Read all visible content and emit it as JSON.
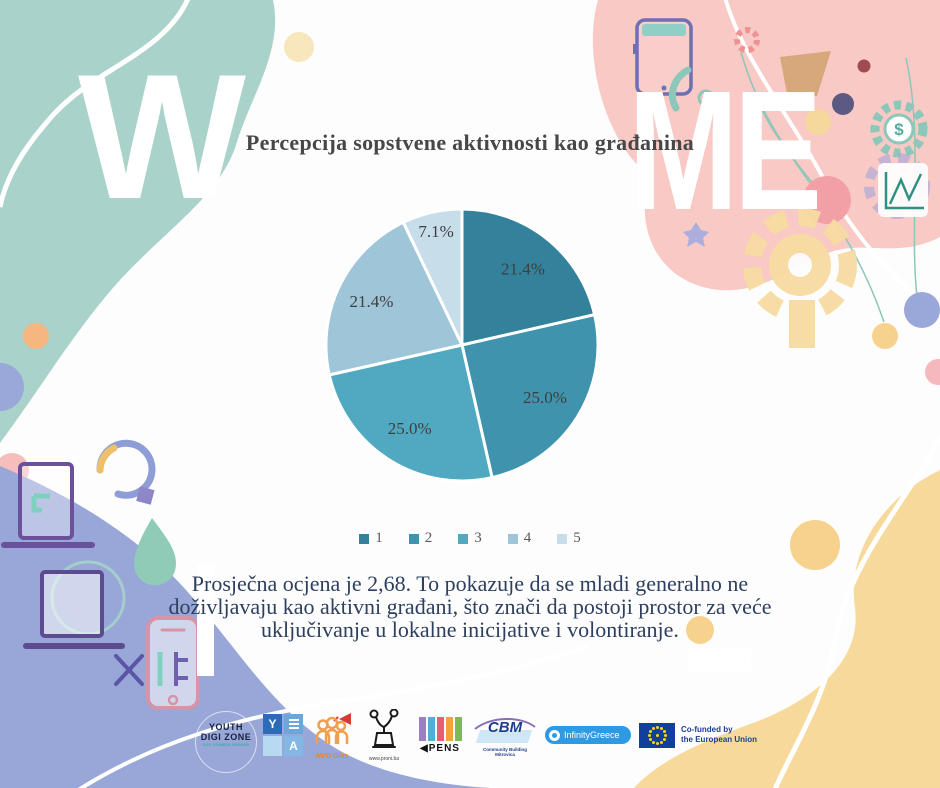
{
  "watermark": {
    "left": "W",
    "right": "ME"
  },
  "chart_data": {
    "type": "pie",
    "title": "Percepcija sopstvene aktivnosti kao građanina",
    "categories": [
      "1",
      "2",
      "3",
      "4",
      "5"
    ],
    "values": [
      21.4,
      25.0,
      25.0,
      21.4,
      7.1
    ],
    "labels": [
      "21.4%",
      "25.0%",
      "25.0%",
      "21.4%",
      "7.1%"
    ],
    "colors": [
      "#34819b",
      "#3f93ad",
      "#50a9c1",
      "#9ec5d8",
      "#c7dde9"
    ],
    "start_angle_deg": 0,
    "direction": "clockwise",
    "legend_position": "bottom",
    "slice_label_color": "#3f3f3f"
  },
  "annotation": {
    "text": "Prosječna ocjena je 2,68. To pokazuje da se mladi generalno ne doživljavaju kao aktivni građani, što znači da postoji prostor za veće uključivanje u lokalne inicijative i volontiranje."
  },
  "logos": {
    "youth_digi_zone": {
      "line1": "YOUTH",
      "line2": "DIGI ZONE",
      "line3": "OUR COMMON GROUND"
    },
    "ya": {
      "top_left": "Y",
      "bottom_right": "A"
    },
    "nvo_glas": {
      "name": "NVO Glas"
    },
    "proni": {
      "url": "www.proni.ba"
    },
    "pens": {
      "name": "PENS"
    },
    "cbm": {
      "name": "CBM",
      "subtitle": "Community Building Mitrovica"
    },
    "infinity_greece": {
      "name": "InfinityGreece"
    },
    "eu": {
      "line1": "Co-funded by",
      "line2": "the European Union"
    }
  },
  "palette": {
    "teal_blob": "#a9d3ca",
    "pink_blob": "#f8c9c5",
    "periwinkle_blob": "#98a7d7",
    "yellow_blob": "#f7d99b",
    "annotation_text": "#2d3f5e",
    "title_text": "#474747"
  }
}
